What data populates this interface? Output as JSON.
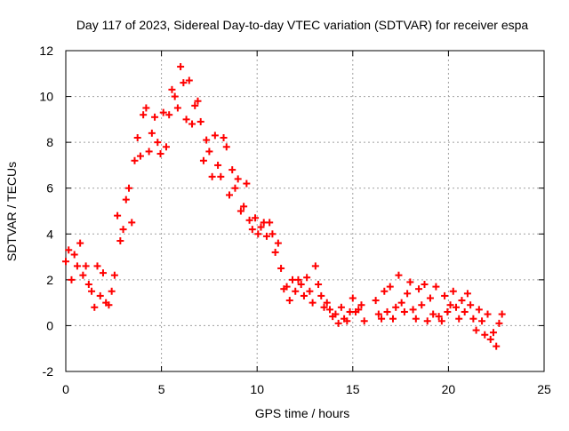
{
  "chart_data": {
    "type": "scatter",
    "title": "Day 117 of 2023, Sidereal Day-to-day VTEC variation (SDTVAR) for receiver espa",
    "xlabel": "GPS time / hours",
    "ylabel": "SDTVAR / TECUs",
    "xlim": [
      0,
      25
    ],
    "ylim": [
      -2,
      12
    ],
    "x_ticks": [
      0,
      5,
      10,
      15,
      20,
      25
    ],
    "y_ticks": [
      -2,
      0,
      2,
      4,
      6,
      8,
      10,
      12
    ],
    "grid": true,
    "marker": "+",
    "series": [
      {
        "name": "SDTVAR",
        "color": "#ff0000",
        "x": [
          0.0,
          0.15,
          0.3,
          0.45,
          0.6,
          0.75,
          0.9,
          1.05,
          1.2,
          1.35,
          1.5,
          1.65,
          1.8,
          1.95,
          2.1,
          2.25,
          2.4,
          2.55,
          2.7,
          2.85,
          3.0,
          3.15,
          3.3,
          3.45,
          3.6,
          3.75,
          3.9,
          4.05,
          4.2,
          4.35,
          4.5,
          4.65,
          4.8,
          4.95,
          5.1,
          5.25,
          5.4,
          5.55,
          5.7,
          5.85,
          6.0,
          6.15,
          6.3,
          6.45,
          6.6,
          6.75,
          6.9,
          7.05,
          7.2,
          7.35,
          7.5,
          7.65,
          7.8,
          7.95,
          8.1,
          8.25,
          8.4,
          8.55,
          8.7,
          8.85,
          9.0,
          9.15,
          9.3,
          9.45,
          9.6,
          9.75,
          9.9,
          10.05,
          10.2,
          10.35,
          10.5,
          10.65,
          10.8,
          10.95,
          11.1,
          11.25,
          11.4,
          11.55,
          11.7,
          11.85,
          12.0,
          12.15,
          12.3,
          12.45,
          12.6,
          12.75,
          12.9,
          13.05,
          13.2,
          13.35,
          13.5,
          13.65,
          13.8,
          13.95,
          14.1,
          14.25,
          14.4,
          14.55,
          14.7,
          14.85,
          15.0,
          15.15,
          15.3,
          15.45,
          15.6,
          16.2,
          16.35,
          16.5,
          16.65,
          16.8,
          16.95,
          17.1,
          17.25,
          17.4,
          17.55,
          17.7,
          17.85,
          18.0,
          18.15,
          18.3,
          18.45,
          18.6,
          18.75,
          18.9,
          19.05,
          19.2,
          19.35,
          19.5,
          19.65,
          19.8,
          19.95,
          20.1,
          20.25,
          20.4,
          20.55,
          20.7,
          20.85,
          21.0,
          21.15,
          21.3,
          21.45,
          21.6,
          21.75,
          21.9,
          22.05,
          22.2,
          22.35,
          22.5,
          22.65,
          22.8
        ],
        "y": [
          2.8,
          3.3,
          2.0,
          3.1,
          2.6,
          3.6,
          2.2,
          2.6,
          1.8,
          1.5,
          0.8,
          2.6,
          1.3,
          2.3,
          1.0,
          0.9,
          1.5,
          2.2,
          4.8,
          3.7,
          4.2,
          5.5,
          6.0,
          4.5,
          7.2,
          8.2,
          7.4,
          9.2,
          9.5,
          7.6,
          8.4,
          9.1,
          8.0,
          7.5,
          9.3,
          7.8,
          9.2,
          10.3,
          10.0,
          9.5,
          11.3,
          10.6,
          9.0,
          10.7,
          8.8,
          9.6,
          9.8,
          8.9,
          7.2,
          8.1,
          7.6,
          6.5,
          8.3,
          7.0,
          6.5,
          8.2,
          7.8,
          5.7,
          6.8,
          6.0,
          6.4,
          5.0,
          5.2,
          6.2,
          4.6,
          4.2,
          4.7,
          4.0,
          4.3,
          4.5,
          3.9,
          4.5,
          4.0,
          3.2,
          3.6,
          2.5,
          1.6,
          1.7,
          1.1,
          2.0,
          1.5,
          2.0,
          1.8,
          1.3,
          2.1,
          1.5,
          1.0,
          2.6,
          1.8,
          1.3,
          0.8,
          1.0,
          0.7,
          0.4,
          0.5,
          0.1,
          0.8,
          0.3,
          0.2,
          0.6,
          1.2,
          0.6,
          0.7,
          0.9,
          0.2,
          1.1,
          0.5,
          0.3,
          1.5,
          0.6,
          1.7,
          0.3,
          0.8,
          2.2,
          1.0,
          0.6,
          1.4,
          1.9,
          0.7,
          0.3,
          1.6,
          0.9,
          1.8,
          0.2,
          1.2,
          0.5,
          1.7,
          0.4,
          0.2,
          1.3,
          0.6,
          0.9,
          1.5,
          0.8,
          0.3,
          1.1,
          0.6,
          1.4,
          0.9,
          0.3,
          -0.2,
          0.7,
          0.2,
          -0.4,
          0.5,
          -0.6,
          -0.3,
          -0.9,
          0.1,
          0.5
        ]
      }
    ]
  }
}
